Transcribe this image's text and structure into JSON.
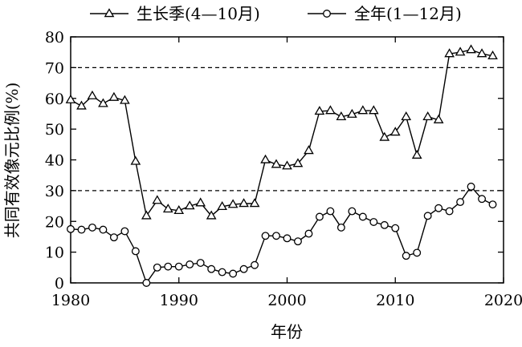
{
  "chart_data": {
    "type": "line",
    "xlabel": "年份",
    "ylabel": "共同有效像元比例(%)",
    "xlim": [
      1980,
      2020
    ],
    "ylim": [
      0,
      80
    ],
    "xticks": [
      1980,
      1990,
      2000,
      2010,
      2020
    ],
    "yticks": [
      0,
      10,
      20,
      30,
      40,
      50,
      60,
      70,
      80
    ],
    "reference_lines": [
      30,
      70
    ],
    "legend_position": "top",
    "x": [
      1980,
      1981,
      1982,
      1983,
      1984,
      1985,
      1986,
      1987,
      1988,
      1989,
      1990,
      1991,
      1992,
      1993,
      1994,
      1995,
      1996,
      1997,
      1998,
      1999,
      2000,
      2001,
      2002,
      2003,
      2004,
      2005,
      2006,
      2007,
      2008,
      2009,
      2010,
      2011,
      2012,
      2013,
      2014,
      2015,
      2016,
      2017,
      2018,
      2019
    ],
    "series": [
      {
        "name": "生长季(4—10月)",
        "marker": "triangle",
        "values": [
          59.5,
          57.5,
          60.8,
          58.3,
          60.3,
          59.3,
          39.5,
          21.8,
          26.8,
          24.0,
          23.5,
          25.0,
          26.0,
          21.8,
          24.8,
          25.5,
          25.8,
          25.8,
          40.0,
          38.5,
          38.0,
          38.8,
          43.0,
          55.8,
          56.0,
          54.0,
          54.8,
          56.0,
          56.0,
          47.3,
          49.0,
          54.0,
          41.5,
          54.0,
          53.0,
          74.5,
          75.0,
          75.8,
          74.5,
          73.8
        ]
      },
      {
        "name": "全年(1—12月)",
        "marker": "circle",
        "values": [
          17.5,
          17.3,
          18.0,
          17.3,
          14.8,
          16.8,
          10.3,
          0.0,
          5.0,
          5.3,
          5.3,
          6.0,
          6.5,
          4.5,
          3.5,
          3.0,
          4.5,
          5.8,
          15.3,
          15.3,
          14.5,
          13.5,
          16.0,
          21.5,
          23.3,
          18.0,
          23.3,
          21.5,
          19.8,
          18.8,
          17.8,
          8.8,
          9.8,
          21.8,
          24.3,
          23.3,
          26.3,
          31.3,
          27.3,
          25.5
        ]
      }
    ]
  }
}
